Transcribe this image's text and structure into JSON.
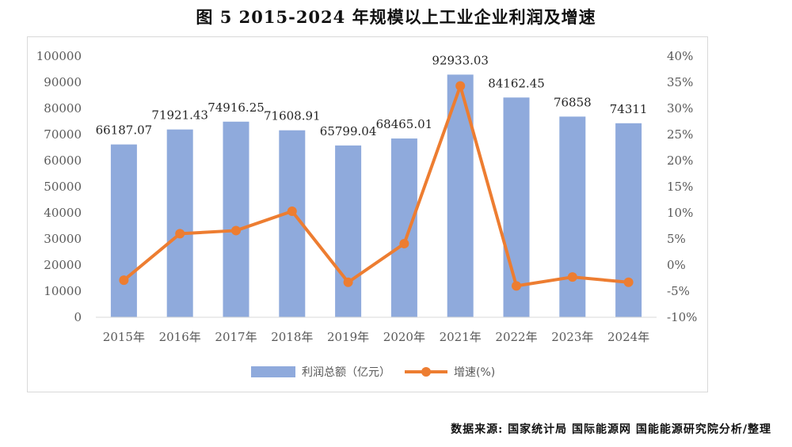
{
  "page": {
    "title": "图  5 2015-2024 年规模以上工业企业利润及增速",
    "source": "数据来源:  国家统计局  国际能源网  国能能源研究院分析/整理"
  },
  "colors": {
    "bar": "#8FAADC",
    "line": "#ED7D31",
    "axis_text": "#595959"
  },
  "chart_data": {
    "type": "bar",
    "categories": [
      "2015年",
      "2016年",
      "2017年",
      "2018年",
      "2019年",
      "2020年",
      "2021年",
      "2022年",
      "2023年",
      "2024年"
    ],
    "series": [
      {
        "name": "利润总额（亿元）",
        "type": "bar",
        "axis": "left",
        "values": [
          66187.07,
          71921.43,
          74916.25,
          71608.91,
          65799.04,
          68465.01,
          92933.03,
          84162.45,
          76858,
          74311
        ],
        "labels": [
          "66187.07",
          "71921.43",
          "74916.25",
          "71608.91",
          "65799.04",
          "68465.01",
          "92933.03",
          "84162.45",
          "76858",
          "74311"
        ]
      },
      {
        "name": "增速(%)",
        "type": "line",
        "axis": "right",
        "values": [
          -2.9,
          6.0,
          6.6,
          10.3,
          -3.3,
          4.1,
          34.3,
          -4.0,
          -2.3,
          -3.3
        ]
      }
    ],
    "ylim": [
      0,
      100000
    ],
    "y_ticks": [
      "0",
      "10000",
      "20000",
      "30000",
      "40000",
      "50000",
      "60000",
      "70000",
      "80000",
      "90000",
      "100000"
    ],
    "y2lim": [
      -10,
      40
    ],
    "y2_ticks": [
      "-10%",
      "-5%",
      "0%",
      "5%",
      "10%",
      "15%",
      "20%",
      "25%",
      "30%",
      "35%",
      "40%"
    ],
    "grid": false,
    "legend_position": "bottom"
  }
}
